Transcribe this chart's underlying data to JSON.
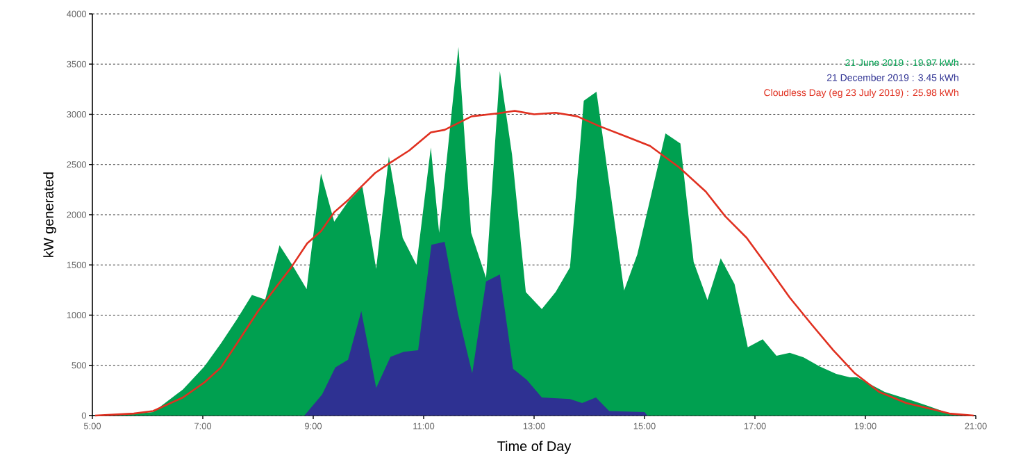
{
  "chart_data": {
    "type": "area",
    "xlabel": "Time of Day",
    "ylabel": "kW generated",
    "xlim": [
      5,
      21
    ],
    "ylim": [
      0,
      4000
    ],
    "xticks": [
      {
        "value": 5,
        "label": "5:00"
      },
      {
        "value": 7,
        "label": "7:00"
      },
      {
        "value": 9,
        "label": "9:00"
      },
      {
        "value": 11,
        "label": "11:00"
      },
      {
        "value": 13,
        "label": "13:00"
      },
      {
        "value": 15,
        "label": "15:00"
      },
      {
        "value": 17,
        "label": "17:00"
      },
      {
        "value": 19,
        "label": "19:00"
      },
      {
        "value": 21,
        "label": "21:00"
      }
    ],
    "yticks": [
      0,
      500,
      1000,
      1500,
      2000,
      2500,
      3000,
      3500,
      4000
    ],
    "grid": "y",
    "legend": "top right",
    "series": [
      {
        "name": "21 June 2019  :  19.97 kWh",
        "color": "#00a050",
        "x": [
          5,
          5.72,
          6.1,
          6.64,
          7.03,
          7.33,
          7.62,
          7.89,
          8.13,
          8.39,
          8.62,
          8.88,
          9.14,
          9.38,
          9.63,
          9.89,
          10.14,
          10.37,
          10.62,
          10.87,
          11.13,
          11.28,
          11.63,
          11.86,
          11.98,
          12.13,
          12.38,
          12.6,
          12.85,
          13.14,
          13.39,
          13.65,
          13.9,
          14.13,
          14.63,
          14.87,
          15.38,
          15.65,
          15.89,
          16.14,
          16.38,
          16.63,
          16.87,
          17.14,
          17.39,
          17.63,
          17.88,
          18.17,
          18.47,
          18.72,
          18.85,
          19.35,
          19.84,
          20.13,
          20.52,
          20.9,
          21
        ],
        "values": [
          0,
          15,
          35,
          260,
          490,
          720,
          960,
          1200,
          1155,
          1695,
          1500,
          1260,
          2410,
          1930,
          2130,
          2280,
          1460,
          2580,
          1770,
          1500,
          2670,
          1820,
          3670,
          1820,
          null,
          1370,
          3430,
          2600,
          1230,
          1060,
          1230,
          1475,
          3135,
          3225,
          1245,
          1605,
          2810,
          2710,
          1530,
          1150,
          1565,
          1310,
          680,
          760,
          595,
          625,
          580,
          490,
          415,
          380,
          380,
          235,
          150,
          97,
          20,
          0,
          0
        ]
      },
      {
        "name": "21 December 2019  :  3.45 kWh",
        "color": "#2e3192",
        "x": [
          8.84,
          9.16,
          9.4,
          9.63,
          9.87,
          10.14,
          10.4,
          10.64,
          10.9,
          11.14,
          11.38,
          11.62,
          11.88,
          12.13,
          12.38,
          12.62,
          12.87,
          13.14,
          13.65,
          13.87,
          14.12,
          14.36,
          15.0,
          15.05
        ],
        "values": [
          0,
          210,
          480,
          555,
          1040,
          275,
          585,
          635,
          650,
          1700,
          1730,
          1015,
          420,
          1335,
          1405,
          465,
          355,
          180,
          165,
          125,
          180,
          45,
          35,
          0
        ]
      },
      {
        "name": "Cloudless Day (eg 23 July 2019)  :  25.98 kWh",
        "type": "line",
        "color": "#e03020",
        "x": [
          5.05,
          5.75,
          6.1,
          6.64,
          7.03,
          7.33,
          7.62,
          8.0,
          8.3,
          8.6,
          8.89,
          9.14,
          9.38,
          9.63,
          9.87,
          10.12,
          10.4,
          10.74,
          11.13,
          11.38,
          11.87,
          12.36,
          12.65,
          13.0,
          13.39,
          13.78,
          14.17,
          14.66,
          15.1,
          15.63,
          16.11,
          16.46,
          16.85,
          17.24,
          17.63,
          18.03,
          18.42,
          18.81,
          19.25,
          19.74,
          20.23,
          20.52,
          20.96
        ],
        "values": [
          0,
          20,
          45,
          180,
          330,
          480,
          720,
          1040,
          1260,
          1475,
          1715,
          1835,
          2025,
          2145,
          2280,
          2415,
          2520,
          2640,
          2820,
          2845,
          2980,
          3010,
          3035,
          3000,
          3015,
          2980,
          2885,
          2780,
          2685,
          2470,
          2230,
          1985,
          1770,
          1475,
          1175,
          905,
          650,
          420,
          235,
          125,
          60,
          20,
          0
        ]
      }
    ]
  }
}
